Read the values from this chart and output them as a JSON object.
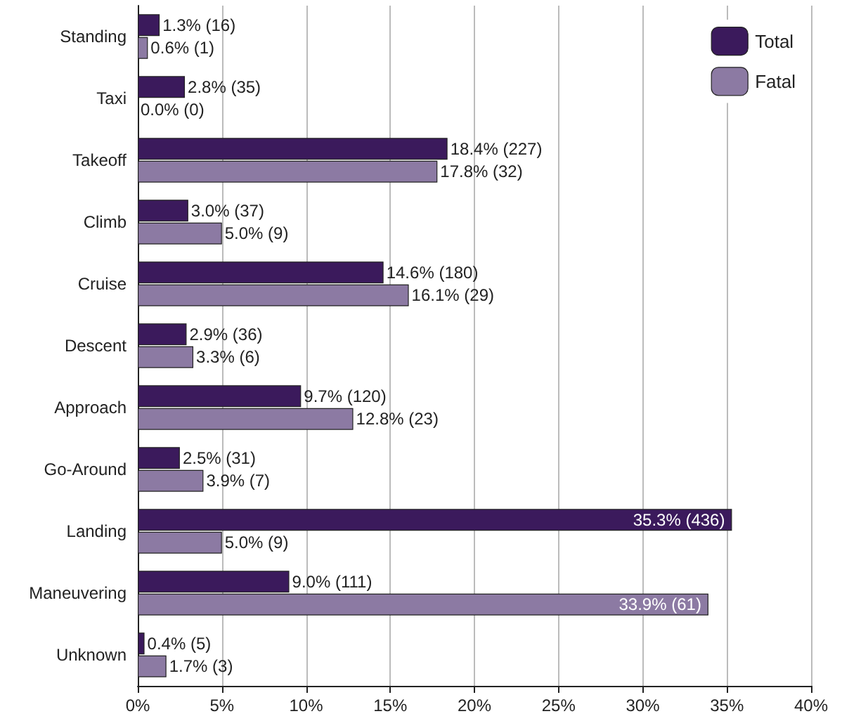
{
  "chart_data": {
    "type": "bar",
    "orientation": "horizontal",
    "categories": [
      "Standing",
      "Taxi",
      "Takeoff",
      "Climb",
      "Cruise",
      "Descent",
      "Approach",
      "Go-Around",
      "Landing",
      "Maneuvering",
      "Unknown"
    ],
    "series": [
      {
        "name": "Total",
        "color": "#3b1a5c",
        "values": [
          1.3,
          2.8,
          18.4,
          3.0,
          14.6,
          2.9,
          9.7,
          2.5,
          35.3,
          9.0,
          0.4
        ],
        "value_labels": [
          "1.3% (16)",
          "2.8% (35)",
          "18.4% (227)",
          "3.0% (37)",
          "14.6% (180)",
          "2.9% (36)",
          "9.7% (120)",
          "2.5% (31)",
          "35.3% (436)",
          "9.0% (111)",
          "0.4% (5)"
        ]
      },
      {
        "name": "Fatal",
        "color": "#8c7aa3",
        "values": [
          0.6,
          0.0,
          17.8,
          5.0,
          16.1,
          3.3,
          12.8,
          3.9,
          5.0,
          33.9,
          1.7
        ],
        "value_labels": [
          "0.6% (1)",
          "0.0% (0)",
          "17.8% (32)",
          "5.0% (9)",
          "16.1% (29)",
          "3.3% (6)",
          "12.8% (23)",
          "3.9% (7)",
          "5.0% (9)",
          "33.9% (61)",
          "1.7% (3)"
        ]
      }
    ],
    "xlim": [
      0,
      40
    ],
    "xticks": [
      {
        "value": 0,
        "label": "0%"
      },
      {
        "value": 5,
        "label": "5%"
      },
      {
        "value": 10,
        "label": "10%"
      },
      {
        "value": 15,
        "label": "15%"
      },
      {
        "value": 20,
        "label": "20%"
      },
      {
        "value": 25,
        "label": "25%"
      },
      {
        "value": 30,
        "label": "30%"
      },
      {
        "value": 35,
        "label": "35%"
      },
      {
        "value": 40,
        "label": "40%"
      }
    ],
    "grid": "x",
    "legend": "top right"
  }
}
